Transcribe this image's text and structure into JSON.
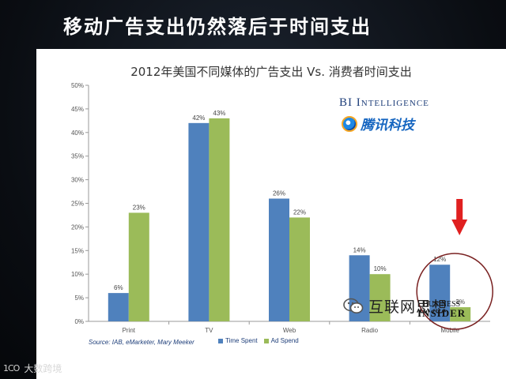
{
  "slide": {
    "title": "移动广告支出仍然落后于时间支出"
  },
  "logos": {
    "bi_intelligence": "BI Intelligence",
    "tencent": "腾讯科技",
    "wechat_account": "互联网思想",
    "business_insider_top": "BUSINESS",
    "business_insider_bottom": "INSIDER",
    "brand_mark": "1CO",
    "brand_name": "大数跨境"
  },
  "source_note": "Source: IAB, eMarketer, Mary Meeker",
  "colors": {
    "time_spent": "#4f81bd",
    "ad_spend": "#9bbb59",
    "annotation_arrow": "#e02020",
    "annotation_circle": "#7a2222"
  },
  "chart_data": {
    "type": "bar",
    "title": "2012年美国不同媒体的广告支出 Vs. 消费者时间支出",
    "categories": [
      "Print",
      "TV",
      "Web",
      "Radio",
      "Mobile"
    ],
    "series": [
      {
        "name": "Time Spent",
        "values": [
          6,
          42,
          26,
          14,
          12
        ]
      },
      {
        "name": "Ad Spend",
        "values": [
          23,
          43,
          22,
          10,
          3
        ]
      }
    ],
    "ylim": [
      0,
      50
    ],
    "yticks": [
      "0%",
      "5%",
      "10%",
      "15%",
      "20%",
      "25%",
      "30%",
      "35%",
      "40%",
      "45%",
      "50%"
    ],
    "value_suffix": "%",
    "grid": false,
    "legend": "bottom",
    "highlight_category": "Mobile"
  }
}
